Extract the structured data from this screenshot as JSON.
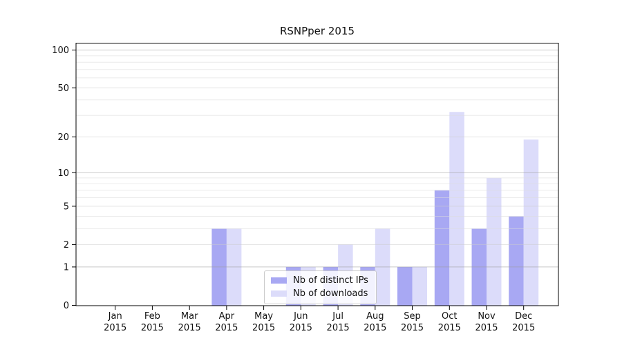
{
  "figure": {
    "title": "RSNPper 2015",
    "background": "#ffffff"
  },
  "chart_data": {
    "type": "bar",
    "title": "RSNPper 2015",
    "categories": [
      "Jan 2015",
      "Feb 2015",
      "Mar 2015",
      "Apr 2015",
      "May 2015",
      "Jun 2015",
      "Jul 2015",
      "Aug 2015",
      "Sep 2015",
      "Oct 2015",
      "Nov 2015",
      "Dec 2015"
    ],
    "series": [
      {
        "name": "Nb of distinct IPs",
        "color": "#a8a8f3",
        "values": [
          0,
          0,
          0,
          3,
          0,
          1,
          1,
          1,
          1,
          7,
          3,
          4
        ]
      },
      {
        "name": "Nb of downloads",
        "color": "#dcdcfa",
        "values": [
          0,
          0,
          0,
          3,
          0,
          1,
          2,
          3,
          1,
          32,
          9,
          19
        ]
      }
    ],
    "xlabel": "",
    "ylabel": "",
    "yscale": "log10(1+x)",
    "ylim": [
      0,
      113
    ],
    "yticks": [
      0,
      1,
      2,
      5,
      10,
      20,
      50,
      100
    ],
    "yticks_minor": [
      3,
      4,
      6,
      7,
      8,
      9,
      30,
      40,
      60,
      70,
      80,
      90
    ],
    "grid": true,
    "legend": {
      "position": "lower center",
      "entries": [
        "Nb of distinct IPs",
        "Nb of downloads"
      ]
    },
    "colors": {
      "bar_distinct_ips": "#a8a8f3",
      "bar_downloads": "#dcdcfa",
      "grid_major": "#c8c8c8",
      "grid_light": "#e3e3e3",
      "grid_minor": "#ececec",
      "spine": "#000000",
      "text": "#111111"
    }
  }
}
